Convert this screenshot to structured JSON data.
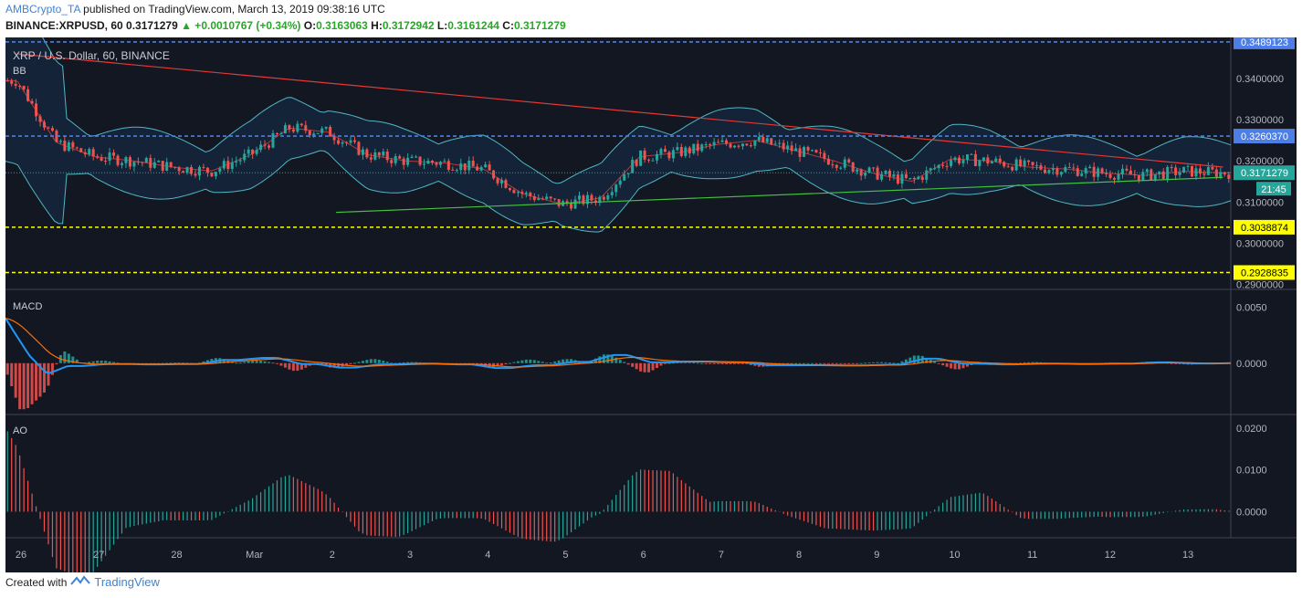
{
  "header": {
    "author": "AMBCrypto_TA",
    "published": " published on TradingView.com, March 13, 2019 09:38:16 UTC",
    "symbol": "BINANCE:XRPUSD, 60 0.3171279",
    "change": "▲ +0.0010767 (+0.34%)",
    "o_label": " O:",
    "o": "0.3163063",
    "h_label": " H:",
    "h": "0.3172942",
    "l_label": " L:",
    "l": "0.3161244",
    "c_label": " C:",
    "c": "0.3171279"
  },
  "chart": {
    "instrument": "XRP / U.S. Dollar, 60, BINANCE",
    "bb_label": "BB",
    "macd_label": "MACD",
    "ao_label": "AO",
    "price_ticks": [
      "0.3400000",
      "0.3300000",
      "0.3200000",
      "0.3100000",
      "0.3000000",
      "0.2900000"
    ],
    "macd_ticks": [
      "0.0050",
      "0.0000"
    ],
    "ao_ticks": [
      "0.0200",
      "0.0100",
      "0.0000"
    ],
    "x_labels": [
      "26",
      "27",
      "28",
      "Mar",
      "2",
      "3",
      "4",
      "5",
      "6",
      "7",
      "8",
      "9",
      "10",
      "11",
      "12",
      "13"
    ],
    "levels": [
      {
        "label": "0.3489123",
        "color": "#4c7ee6",
        "value": 0.3489123
      },
      {
        "label": "0.3260370",
        "color": "#4c7ee6",
        "value": 0.326037
      },
      {
        "label": "0.3171279",
        "color": "#26a69a",
        "value": 0.3171279
      },
      {
        "label": "0.3038874",
        "color": "#ffff00",
        "value": 0.3038874
      },
      {
        "label": "0.2928835",
        "color": "#ffff00",
        "value": 0.2928835
      }
    ],
    "countdown": "21:45"
  },
  "chart_data": {
    "type": "line",
    "title": "XRP / U.S. Dollar, 60, BINANCE",
    "x": [
      26,
      26.5,
      27,
      27.5,
      28,
      28.5,
      29,
      29.5,
      30,
      30.5,
      31,
      31.5,
      32,
      32.5,
      33,
      33.5,
      34,
      34.5,
      35,
      35.5,
      36,
      36.5,
      37,
      37.5,
      38,
      38.5,
      39,
      39.5,
      40,
      40.5,
      41,
      41.5
    ],
    "series": [
      {
        "values": [
          0.3395,
          0.3245,
          0.321,
          0.32,
          0.3185,
          0.3175,
          0.3215,
          0.328,
          0.327,
          0.3215,
          0.32,
          0.3195,
          0.318,
          0.312,
          0.3095,
          0.311,
          0.321,
          0.322,
          0.324,
          0.325,
          0.3225,
          0.32,
          0.317,
          0.315,
          0.3205,
          0.32,
          0.3185,
          0.318,
          0.317,
          0.3165,
          0.3175,
          0.3171
        ]
      }
    ],
    "ylim": [
      0.289,
      0.35
    ],
    "resistance_lines": [
      0.3489123,
      0.326037
    ],
    "support_lines": [
      0.3038874,
      0.2928835
    ],
    "macd": {
      "ylim": [
        -0.0045,
        0.0065
      ]
    },
    "ao": {
      "ylim": [
        -0.006,
        0.023
      ]
    }
  },
  "footer": {
    "created_with": "Created with",
    "brand": "TradingView"
  }
}
